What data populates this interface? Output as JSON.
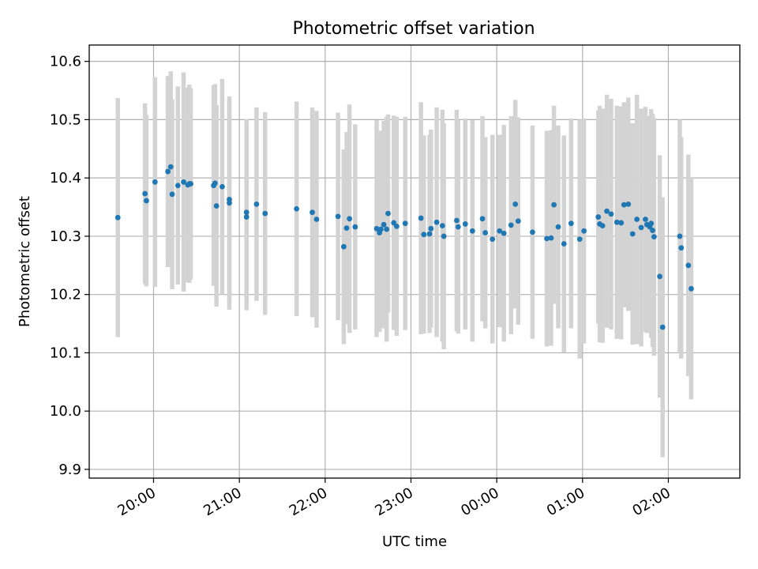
{
  "chart_data": {
    "type": "scatter",
    "title": "Photometric offset variation",
    "xlabel": "UTC time",
    "ylabel": "Photometric offset",
    "xlim": [
      "19:15",
      "02:50"
    ],
    "ylim": [
      9.885,
      10.628
    ],
    "x_ticks": [
      "20:00",
      "21:00",
      "22:00",
      "23:00",
      "00:00",
      "01:00",
      "02:00"
    ],
    "y_ticks": [
      "9.9",
      "10.0",
      "10.1",
      "10.2",
      "10.3",
      "10.4",
      "10.5",
      "10.6"
    ],
    "grid": true,
    "colors": {
      "points": "#1f77b4",
      "error_bars": "#d3d3d3",
      "grid": "#b0b0b0"
    },
    "series": [
      {
        "x": [
          "19:35",
          "19:54",
          "19:55",
          "20:01",
          "20:10",
          "20:12",
          "20:13",
          "20:17",
          "20:21",
          "20:24",
          "20:25",
          "20:26",
          "20:42",
          "20:43",
          "20:44",
          "20:48",
          "20:53",
          "20:53",
          "21:05",
          "21:05",
          "21:12",
          "21:18",
          "21:40",
          "21:51",
          "21:54",
          "22:09",
          "22:13",
          "22:15",
          "22:17",
          "22:21",
          "22:36",
          "22:38",
          "22:39",
          "22:41",
          "22:43",
          "22:44",
          "22:48",
          "22:50",
          "22:56",
          "23:07",
          "23:09",
          "23:13",
          "23:14",
          "23:18",
          "23:22",
          "23:23",
          "23:32",
          "23:33",
          "23:38",
          "23:43",
          "23:50",
          "23:52",
          "23:57",
          "24:02",
          "24:05",
          "24:10",
          "24:13",
          "24:15",
          "24:25",
          "24:35",
          "24:38",
          "24:40",
          "24:43",
          "24:47",
          "24:52",
          "24:58",
          "25:01",
          "25:11",
          "25:12",
          "25:14",
          "25:17",
          "25:20",
          "25:24",
          "25:27",
          "25:29",
          "25:32",
          "25:35",
          "25:38",
          "25:41",
          "25:44",
          "25:45",
          "25:47",
          "25:48",
          "25:49",
          "25:50",
          "25:54",
          "25:56",
          "26:08",
          "26:09",
          "26:14",
          "26:16"
        ],
        "y": [
          10.332,
          10.373,
          10.361,
          10.393,
          10.411,
          10.419,
          10.372,
          10.387,
          10.393,
          10.388,
          10.39,
          10.39,
          10.387,
          10.391,
          10.352,
          10.385,
          10.357,
          10.363,
          10.333,
          10.341,
          10.355,
          10.339,
          10.347,
          10.341,
          10.329,
          10.334,
          10.282,
          10.314,
          10.33,
          10.316,
          10.313,
          10.306,
          10.312,
          10.32,
          10.312,
          10.339,
          10.323,
          10.317,
          10.322,
          10.331,
          10.303,
          10.304,
          10.313,
          10.324,
          10.318,
          10.3,
          10.327,
          10.316,
          10.321,
          10.309,
          10.33,
          10.306,
          10.295,
          10.309,
          10.305,
          10.319,
          10.355,
          10.326,
          10.307,
          10.296,
          10.297,
          10.354,
          10.316,
          10.287,
          10.322,
          10.295,
          10.309,
          10.333,
          10.321,
          10.318,
          10.343,
          10.338,
          10.324,
          10.323,
          10.354,
          10.355,
          10.304,
          10.329,
          10.315,
          10.329,
          10.32,
          10.316,
          10.322,
          10.31,
          10.299,
          10.231,
          10.144,
          10.3,
          10.28,
          10.25,
          10.21
        ],
        "yerr": [
          0.205,
          0.155,
          0.147,
          0.18,
          0.164,
          0.164,
          0.163,
          0.17,
          0.188,
          0.167,
          0.17,
          0.164,
          0.172,
          0.17,
          0.173,
          0.185,
          0.183,
          0.171,
          0.16,
          0.16,
          0.166,
          0.174,
          0.184,
          0.18,
          0.186,
          0.178,
          0.167,
          0.165,
          0.196,
          0.176,
          0.186,
          0.17,
          0.169,
          0.178,
          0.193,
          0.17,
          0.184,
          0.188,
          0.183,
          0.199,
          0.17,
          0.17,
          0.17,
          0.197,
          0.199,
          0.194,
          0.19,
          0.183,
          0.181,
          0.19,
          0.176,
          0.164,
          0.179,
          0.165,
          0.186,
          0.187,
          0.179,
          0.178,
          0.183,
          0.185,
          0.185,
          0.17,
          0.174,
          0.186,
          0.18,
          0.205,
          0.193,
          0.183,
          0.203,
          0.201,
          0.2,
          0.198,
          0.2,
          0.2,
          0.176,
          0.183,
          0.19,
          0.214,
          0.204,
          0.193,
          0.186,
          0.177,
          0.196,
          0.2,
          0.204,
          0.208,
          0.223,
          0.2,
          0.19,
          0.19,
          0.19
        ]
      }
    ]
  }
}
